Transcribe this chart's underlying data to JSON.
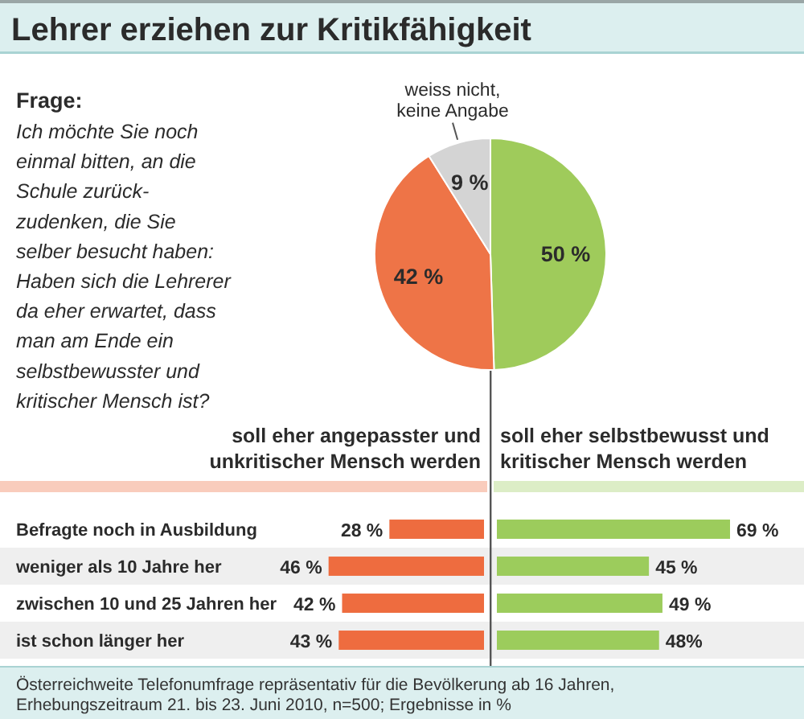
{
  "chart_data": [
    {
      "type": "pie",
      "title": "Lehrer erziehen zur Kritikfähigkeit",
      "annotations": [
        "Frage:",
        "Ich möchte Sie noch\neinmal bitten, an die\nSchule zurück-\nzudenken, die Sie\nselber besucht haben:\nHaben sich die Lehrerer\nda eher erwartet, dass\nman am Ende ein\nselbstbewusster und\nkritischer Mensch ist?"
      ],
      "categories": [
        null,
        null,
        "weiss nicht,\nkeine Angabe"
      ],
      "values": [
        50,
        42,
        9
      ],
      "colors": [
        "#9fcb5b",
        "#ee7447",
        "#d4d4d4"
      ],
      "value_labels": [
        "50 %",
        "42 %",
        "9 %"
      ]
    },
    {
      "type": "bar",
      "orientation": "horizontal",
      "title": "soll eher angepasster und\nunkritischer Mensch werden",
      "categories": [
        "Befragte noch in Ausbildung",
        "weniger als 10 Jahre her",
        "zwischen 10 und 25 Jahren her",
        "ist schon länger her"
      ],
      "series": [
        {
          "color": "#ee6c3f",
          "values": [
            28,
            46,
            42,
            43
          ],
          "value_labels": [
            "28 %",
            "46 %",
            "42 %",
            "43 %"
          ]
        }
      ],
      "annotations": [
        "Österreichweite Telefonumfrage repräsentativ für die Bevölkerung ab 16 Jahren,\nErhebungszeitraum 21. bis 23. Juni 2010, n=500; Ergebnisse in %"
      ]
    },
    {
      "type": "bar",
      "orientation": "horizontal",
      "title": "soll eher selbstbewusst und\nkritischer Mensch werden",
      "categories": [
        null,
        null,
        null,
        null
      ],
      "series": [
        {
          "color": "#9ccc5c",
          "values": [
            69,
            45,
            49,
            48
          ],
          "value_labels": [
            "69 %",
            "45 %",
            "49 %",
            "48%"
          ]
        }
      ]
    }
  ]
}
